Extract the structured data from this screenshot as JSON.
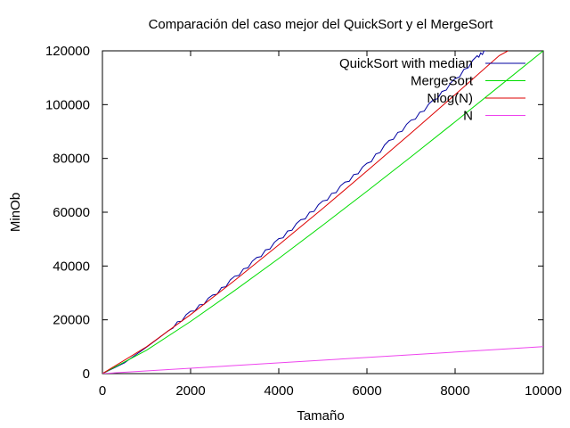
{
  "chart_data": {
    "type": "line",
    "title": "Comparación del caso mejor del QuickSort y el MergeSort",
    "xlabel": "Tamaño",
    "ylabel": "MinOb",
    "xlim": [
      0,
      10000
    ],
    "ylim": [
      0,
      120000
    ],
    "xticks": [
      "0",
      "2000",
      "4000",
      "6000",
      "8000",
      "10000"
    ],
    "yticks": [
      "0",
      "20000",
      "40000",
      "60000",
      "80000",
      "100000",
      "120000"
    ],
    "grid": false,
    "legend_position": "top-right",
    "series": [
      {
        "name": "QuickSort with median",
        "color": "#0000a0",
        "x": [
          0,
          500,
          1000,
          1500,
          2000,
          2500,
          3000,
          3500,
          4000,
          4500,
          5000,
          5500,
          6000,
          6500,
          7000,
          7500,
          8000,
          8500,
          8700
        ],
        "values": [
          0,
          4000,
          9800,
          16000,
          22500,
          28500,
          35500,
          42500,
          49500,
          56500,
          63500,
          70500,
          77500,
          86000,
          93500,
          101000,
          109000,
          117500,
          120000
        ]
      },
      {
        "name": "MergeSort",
        "color": "#00dd00",
        "x": [
          0,
          1000,
          2000,
          3000,
          4000,
          5000,
          6000,
          7000,
          8000,
          9000,
          10000
        ],
        "values": [
          0,
          8700,
          19400,
          30900,
          42800,
          55200,
          67800,
          80600,
          93600,
          106800,
          120000
        ]
      },
      {
        "name": "Nlog(N)",
        "color": "#dd0000",
        "x": [
          0,
          1000,
          2000,
          3000,
          4000,
          5000,
          6000,
          7000,
          8000,
          9000,
          9200
        ],
        "values": [
          0,
          9966,
          21932,
          34652,
          47863,
          61439,
          75304,
          89412,
          103726,
          118221,
          120000
        ]
      },
      {
        "name": "N",
        "color": "#ee44ee",
        "x": [
          0,
          10000
        ],
        "values": [
          0,
          10000
        ]
      }
    ]
  }
}
